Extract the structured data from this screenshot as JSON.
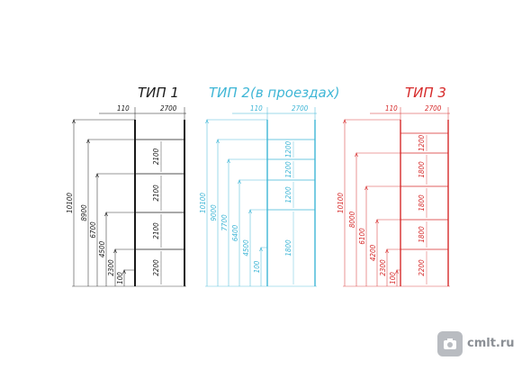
{
  "types": [
    {
      "id": "t1",
      "title": "ТИП 1",
      "color": "#1a1a1a",
      "widths": [
        "110",
        "2700"
      ],
      "totals": [
        "10100",
        "8900",
        "6700",
        "4500",
        "2300",
        "100"
      ],
      "spans": [
        "2100",
        "2100",
        "2100",
        "2200"
      ]
    },
    {
      "id": "t2",
      "title": "ТИП 2(в проездах)",
      "color": "#3fb6d6",
      "widths": [
        "110",
        "2700"
      ],
      "totals": [
        "10100",
        "9000",
        "7700",
        "6400",
        "4500",
        "100"
      ],
      "spans": [
        "1200",
        "1200",
        "1200",
        "1800"
      ]
    },
    {
      "id": "t3",
      "title": "ТИП 3",
      "color": "#d62a2a",
      "widths": [
        "110",
        "2700"
      ],
      "totals": [
        "10100",
        "8000",
        "6100",
        "4200",
        "2300",
        "100"
      ],
      "spans": [
        "1200",
        "1800",
        "1800",
        "1800",
        "2200"
      ]
    }
  ],
  "watermark": {
    "text": "cmlt.ru",
    "icon": "camera-icon"
  }
}
